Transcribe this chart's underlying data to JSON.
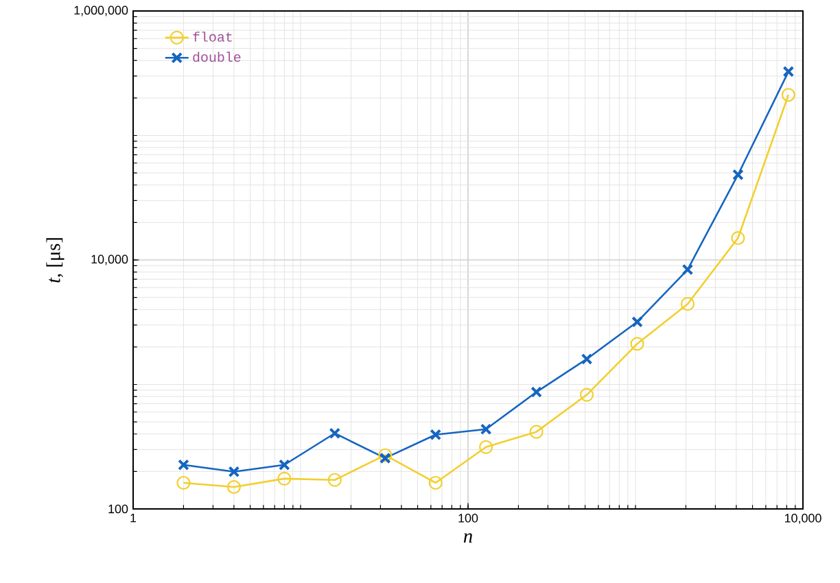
{
  "chart_data": {
    "type": "line",
    "xlabel": "n",
    "ylabel": "*t*, [μs]",
    "log": "xy",
    "grid": true,
    "legend": "top left",
    "line_style": "solid",
    "x": [
      2,
      4,
      8,
      16,
      32,
      64,
      128,
      256,
      512,
      1024,
      2048,
      4096,
      8192
    ],
    "xlim": [
      1,
      10000
    ],
    "xticks": [
      1,
      100,
      {
        "value": 10000,
        "label": "10,000"
      }
    ],
    "ylim": [
      100,
      1000000
    ],
    "yticks": [
      100,
      {
        "value": 10000,
        "label": "10,000"
      },
      {
        "value": 1000000,
        "label": "1,000,000"
      }
    ],
    "series": [
      {
        "name": "float",
        "color": "#f2cf2e",
        "marker": "circle",
        "values": [
          162,
          150,
          175,
          171,
          270,
          162,
          314,
          416,
          826,
          2120,
          4430,
          15000,
          212000
        ]
      },
      {
        "name": "double",
        "color": "#1565c0",
        "marker": "cross",
        "values": [
          226,
          199,
          226,
          405,
          256,
          395,
          437,
          869,
          1600,
          3180,
          8370,
          48400,
          326000
        ]
      }
    ]
  }
}
